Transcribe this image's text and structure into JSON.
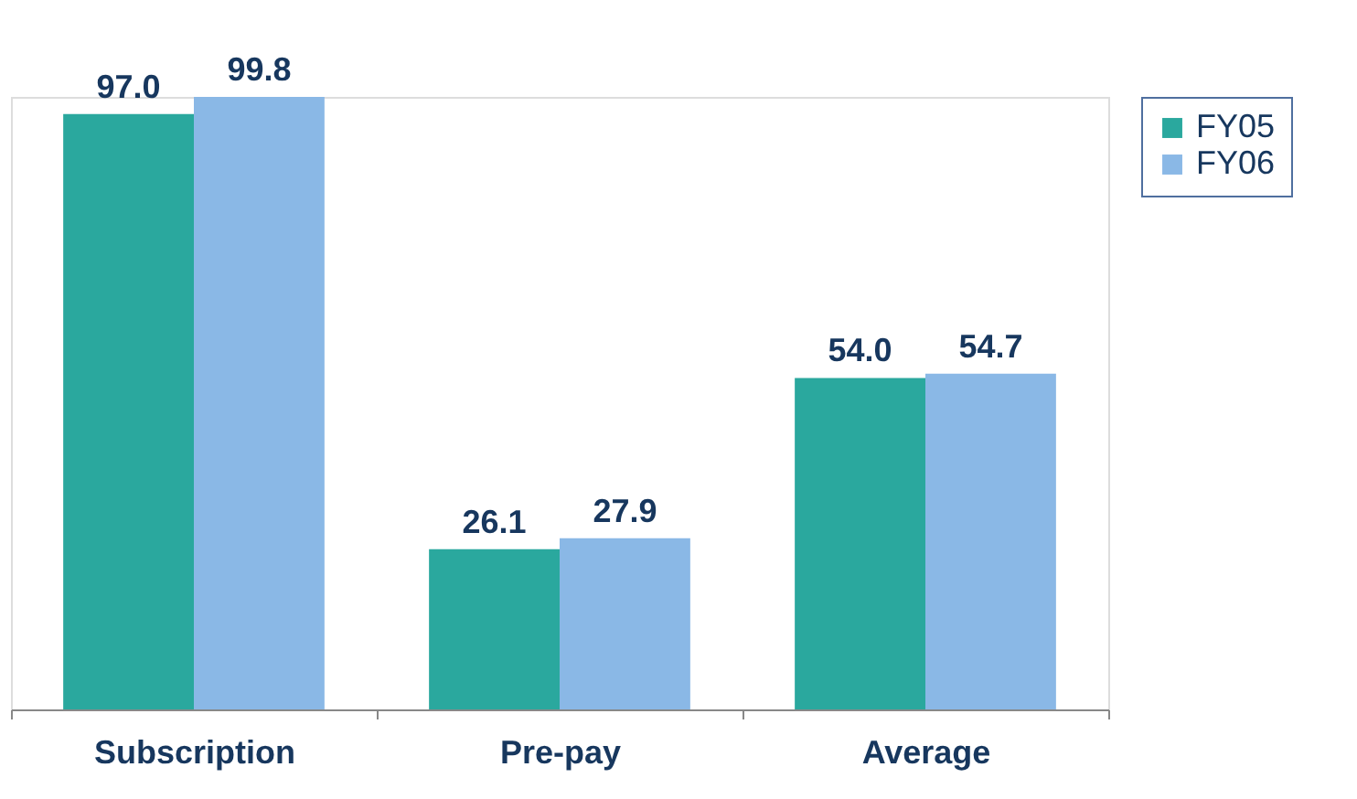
{
  "chart_data": {
    "type": "bar",
    "categories": [
      "Subscription",
      "Pre-pay",
      "Average"
    ],
    "series": [
      {
        "name": "FY05",
        "color": "#2aa89e",
        "values": [
          97.0,
          26.1,
          54.0
        ],
        "value_labels": [
          "97.0",
          "26.1",
          "54.0"
        ]
      },
      {
        "name": "FY06",
        "color": "#8ab8e6",
        "values": [
          99.8,
          27.9,
          54.7
        ],
        "value_labels": [
          "99.8",
          "27.9",
          "54.7"
        ]
      }
    ],
    "legend": "right",
    "grid": false,
    "tick_labels": "x"
  }
}
